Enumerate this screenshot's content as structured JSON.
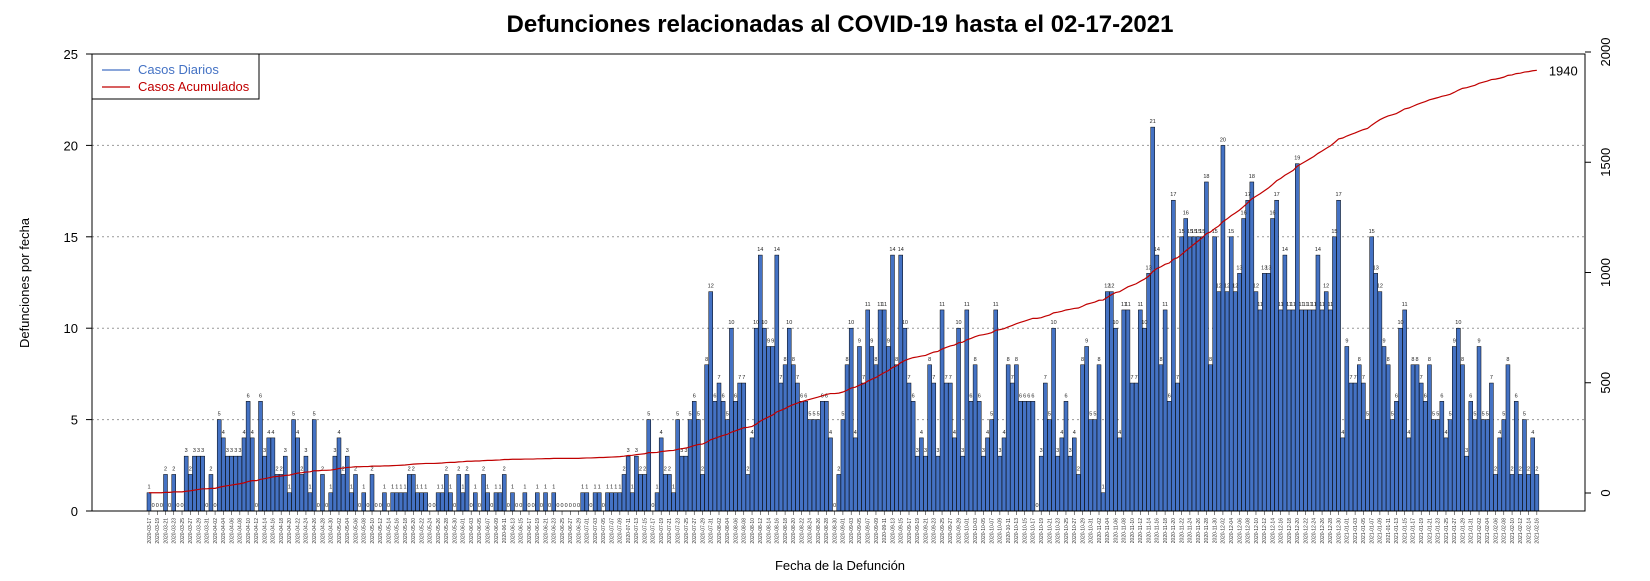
{
  "chart_data": {
    "type": "bar",
    "title": "Defunciones relacionadas al COVID-19 hasta el 02-17-2021",
    "xlabel": "Fecha de la Defunción",
    "ylabel": "Defunciones por fecha",
    "ylim": [
      0,
      25
    ],
    "y_ticks": [
      "0",
      "5",
      "10",
      "15",
      "20",
      "25"
    ],
    "y2lim": [
      0,
      2000
    ],
    "y2_ticks": [
      "0",
      "500",
      "1000",
      "1500",
      "2000"
    ],
    "grid": "horizontal dotted",
    "legend_position": "top-left",
    "start_date": "2020-03-17",
    "end_date": "2021-02-16",
    "series": [
      {
        "name": "Casos Diarios",
        "color": "#4472C4",
        "values": [
          1,
          0,
          0,
          0,
          2,
          0,
          2,
          0,
          0,
          3,
          2,
          3,
          3,
          3,
          0,
          2,
          0,
          5,
          4,
          3,
          3,
          3,
          3,
          4,
          6,
          4,
          0,
          6,
          3,
          4,
          4,
          2,
          2,
          3,
          1,
          5,
          4,
          2,
          3,
          1,
          5,
          0,
          2,
          0,
          1,
          3,
          4,
          2,
          3,
          1,
          2,
          0,
          1,
          0,
          2,
          0,
          0,
          1,
          0,
          1,
          1,
          1,
          1,
          2,
          2,
          1,
          1,
          1,
          0,
          0,
          1,
          1,
          2,
          1,
          0,
          2,
          1,
          2,
          0,
          1,
          0,
          2,
          1,
          0,
          1,
          1,
          2,
          0,
          1,
          0,
          0,
          1,
          0,
          0,
          1,
          0,
          1,
          0,
          1,
          0,
          0,
          0,
          0,
          0,
          0,
          1,
          1,
          0,
          1,
          1,
          0,
          1,
          1,
          1,
          1,
          2,
          3,
          1,
          3,
          2,
          2,
          5,
          0,
          1,
          4,
          2,
          2,
          1,
          5,
          3,
          3,
          5,
          6,
          5,
          2,
          8,
          12,
          6,
          7,
          6,
          5,
          10,
          6,
          7,
          7,
          2,
          4,
          10,
          14,
          10,
          9,
          9,
          14,
          7,
          8,
          10,
          8,
          7,
          6,
          6,
          5,
          5,
          5,
          6,
          6,
          4,
          0,
          2,
          5,
          8,
          10,
          4,
          9,
          7,
          11,
          9,
          8,
          11,
          11,
          9,
          14,
          8,
          14,
          10,
          7,
          6,
          3,
          4,
          3,
          8,
          7,
          3,
          11,
          7,
          7,
          4,
          10,
          3,
          11,
          6,
          8,
          6,
          3,
          4,
          5,
          11,
          3,
          4,
          8,
          7,
          8,
          6,
          6,
          6,
          6,
          0,
          3,
          7,
          5,
          10,
          3,
          4,
          6,
          3,
          4,
          2,
          8,
          9,
          5,
          5,
          8,
          1,
          12,
          12,
          10,
          4,
          11,
          11,
          7,
          7,
          11,
          10,
          13,
          21,
          14,
          8,
          11,
          6,
          17,
          7,
          15,
          16,
          15,
          15,
          15,
          15,
          18,
          8,
          15,
          12,
          20,
          12,
          15,
          12,
          13,
          16,
          17,
          18,
          12,
          11,
          13,
          13,
          16,
          17,
          11,
          14,
          11,
          11,
          19,
          11,
          11,
          11,
          11,
          14,
          11,
          12,
          11,
          15,
          17,
          4,
          9,
          7,
          7,
          8,
          7,
          5,
          15,
          13,
          12,
          9,
          8,
          5,
          6,
          10,
          11,
          4,
          8,
          8,
          7,
          6,
          8,
          5,
          5,
          6,
          4,
          5,
          9,
          10,
          8,
          3,
          6,
          5,
          9,
          5,
          5,
          7,
          2,
          4,
          5,
          8,
          2,
          6,
          2,
          5,
          2,
          4,
          2
        ]
      },
      {
        "name": "Casos Acumulados",
        "color": "#C00000",
        "final_total": 1940
      }
    ],
    "end_label": "1940",
    "date_tick_labels": [
      "2020-03-17",
      "2020-03-19",
      "2020-03-21",
      "2020-03-23",
      "2020-03-25",
      "2020-03-27",
      "2020-03-29",
      "2020-03-31",
      "2020-04-02",
      "2020-04-04",
      "2020-04-06",
      "2020-04-08",
      "2020-04-10",
      "2020-04-12",
      "2020-04-14",
      "2020-04-16",
      "2020-04-18",
      "2020-04-20",
      "2020-04-22",
      "2020-04-24",
      "2020-04-26",
      "2020-04-28",
      "2020-04-30",
      "2020-05-02",
      "2020-05-04",
      "2020-05-06",
      "2020-05-08",
      "2020-05-10",
      "2020-05-12",
      "2020-05-14",
      "2020-05-16",
      "2020-05-18",
      "2020-05-20",
      "2020-05-22",
      "2020-05-24",
      "2020-05-26",
      "2020-05-28",
      "2020-05-30",
      "2020-06-01",
      "2020-06-03",
      "2020-06-05",
      "2020-06-07",
      "2020-06-09",
      "2020-06-11",
      "2020-06-13",
      "2020-06-15",
      "2020-06-17",
      "2020-06-19",
      "2020-06-21",
      "2020-06-23",
      "2020-06-25",
      "2020-06-27",
      "2020-06-29",
      "2020-07-01",
      "2020-07-03",
      "2020-07-05",
      "2020-07-07",
      "2020-07-09",
      "2020-07-11",
      "2020-07-13",
      "2020-07-15",
      "2020-07-17",
      "2020-07-19",
      "2020-07-21",
      "2020-07-23",
      "2020-07-25",
      "2020-07-27",
      "2020-07-29",
      "2020-07-31",
      "2020-08-02",
      "2020-08-04",
      "2020-08-06",
      "2020-08-08",
      "2020-08-10",
      "2020-08-12",
      "2020-08-14",
      "2020-08-16",
      "2020-08-18",
      "2020-08-20",
      "2020-08-22",
      "2020-08-24",
      "2020-08-26",
      "2020-08-28",
      "2020-08-30",
      "2020-09-01",
      "2020-09-03",
      "2020-09-05",
      "2020-09-07",
      "2020-09-09",
      "2020-09-11",
      "2020-09-13",
      "2020-09-15",
      "2020-09-17",
      "2020-09-19",
      "2020-09-21",
      "2020-09-23",
      "2020-09-25",
      "2020-09-27",
      "2020-09-29",
      "2020-10-01",
      "2020-10-03",
      "2020-10-05",
      "2020-10-07",
      "2020-10-09",
      "2020-10-11",
      "2020-10-13",
      "2020-10-15",
      "2020-10-17",
      "2020-10-19",
      "2020-10-21",
      "2020-10-23",
      "2020-10-25",
      "2020-10-27",
      "2020-10-29",
      "2020-10-31",
      "2020-11-02",
      "2020-11-04",
      "2020-11-06",
      "2020-11-08",
      "2020-11-10",
      "2020-11-12",
      "2020-11-14",
      "2020-11-16",
      "2020-11-18",
      "2020-11-20",
      "2020-11-22",
      "2020-11-24",
      "2020-11-26",
      "2020-11-28",
      "2020-11-30",
      "2020-12-02",
      "2020-12-04",
      "2020-12-06",
      "2020-12-08",
      "2020-12-10",
      "2020-12-12",
      "2020-12-14",
      "2020-12-16",
      "2020-12-18",
      "2020-12-20",
      "2020-12-22",
      "2020-12-24",
      "2020-12-26",
      "2020-12-28",
      "2020-12-30",
      "2021-01-01",
      "2021-01-03",
      "2021-01-05",
      "2021-01-07",
      "2021-01-09",
      "2021-01-11",
      "2021-01-13",
      "2021-01-15",
      "2021-01-17",
      "2021-01-19",
      "2021-01-21",
      "2021-01-23",
      "2021-01-25",
      "2021-01-27",
      "2021-01-29",
      "2021-01-31",
      "2021-02-02",
      "2021-02-04",
      "2021-02-06",
      "2021-02-08",
      "2021-02-10",
      "2021-02-12",
      "2021-02-14",
      "2021-02-16"
    ]
  }
}
